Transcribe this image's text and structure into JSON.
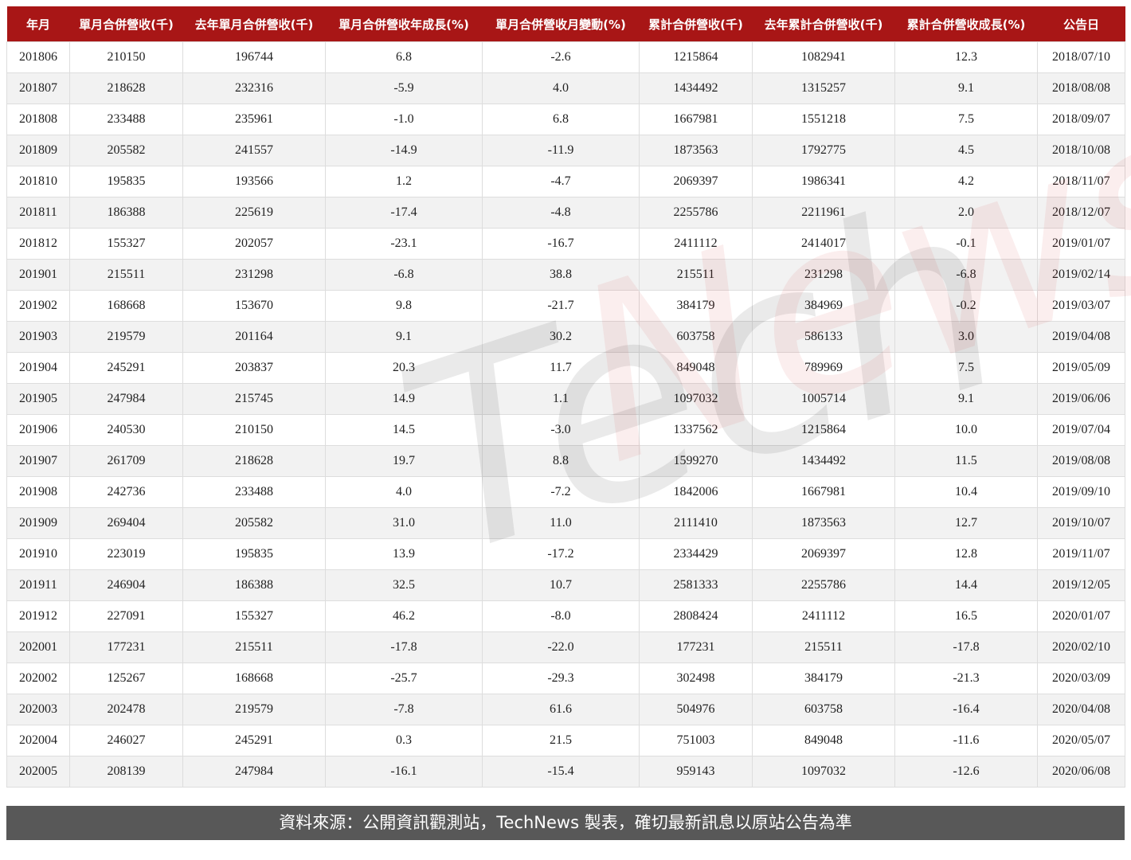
{
  "chart_data": {
    "type": "table",
    "columns": [
      "年月",
      "單月合併營收(千)",
      "去年單月合併營收(千)",
      "單月合併營收年成長(%)",
      "單月合併營收月變動(%)",
      "累計合併營收(千)",
      "去年累計合併營收(千)",
      "累計合併營收成長(%)",
      "公告日"
    ],
    "rows": [
      [
        "201806",
        "210150",
        "196744",
        "6.8",
        "-2.6",
        "1215864",
        "1082941",
        "12.3",
        "2018/07/10"
      ],
      [
        "201807",
        "218628",
        "232316",
        "-5.9",
        "4.0",
        "1434492",
        "1315257",
        "9.1",
        "2018/08/08"
      ],
      [
        "201808",
        "233488",
        "235961",
        "-1.0",
        "6.8",
        "1667981",
        "1551218",
        "7.5",
        "2018/09/07"
      ],
      [
        "201809",
        "205582",
        "241557",
        "-14.9",
        "-11.9",
        "1873563",
        "1792775",
        "4.5",
        "2018/10/08"
      ],
      [
        "201810",
        "195835",
        "193566",
        "1.2",
        "-4.7",
        "2069397",
        "1986341",
        "4.2",
        "2018/11/07"
      ],
      [
        "201811",
        "186388",
        "225619",
        "-17.4",
        "-4.8",
        "2255786",
        "2211961",
        "2.0",
        "2018/12/07"
      ],
      [
        "201812",
        "155327",
        "202057",
        "-23.1",
        "-16.7",
        "2411112",
        "2414017",
        "-0.1",
        "2019/01/07"
      ],
      [
        "201901",
        "215511",
        "231298",
        "-6.8",
        "38.8",
        "215511",
        "231298",
        "-6.8",
        "2019/02/14"
      ],
      [
        "201902",
        "168668",
        "153670",
        "9.8",
        "-21.7",
        "384179",
        "384969",
        "-0.2",
        "2019/03/07"
      ],
      [
        "201903",
        "219579",
        "201164",
        "9.1",
        "30.2",
        "603758",
        "586133",
        "3.0",
        "2019/04/08"
      ],
      [
        "201904",
        "245291",
        "203837",
        "20.3",
        "11.7",
        "849048",
        "789969",
        "7.5",
        "2019/05/09"
      ],
      [
        "201905",
        "247984",
        "215745",
        "14.9",
        "1.1",
        "1097032",
        "1005714",
        "9.1",
        "2019/06/06"
      ],
      [
        "201906",
        "240530",
        "210150",
        "14.5",
        "-3.0",
        "1337562",
        "1215864",
        "10.0",
        "2019/07/04"
      ],
      [
        "201907",
        "261709",
        "218628",
        "19.7",
        "8.8",
        "1599270",
        "1434492",
        "11.5",
        "2019/08/08"
      ],
      [
        "201908",
        "242736",
        "233488",
        "4.0",
        "-7.2",
        "1842006",
        "1667981",
        "10.4",
        "2019/09/10"
      ],
      [
        "201909",
        "269404",
        "205582",
        "31.0",
        "11.0",
        "2111410",
        "1873563",
        "12.7",
        "2019/10/07"
      ],
      [
        "201910",
        "223019",
        "195835",
        "13.9",
        "-17.2",
        "2334429",
        "2069397",
        "12.8",
        "2019/11/07"
      ],
      [
        "201911",
        "246904",
        "186388",
        "32.5",
        "10.7",
        "2581333",
        "2255786",
        "14.4",
        "2019/12/05"
      ],
      [
        "201912",
        "227091",
        "155327",
        "46.2",
        "-8.0",
        "2808424",
        "2411112",
        "16.5",
        "2020/01/07"
      ],
      [
        "202001",
        "177231",
        "215511",
        "-17.8",
        "-22.0",
        "177231",
        "215511",
        "-17.8",
        "2020/02/10"
      ],
      [
        "202002",
        "125267",
        "168668",
        "-25.7",
        "-29.3",
        "302498",
        "384179",
        "-21.3",
        "2020/03/09"
      ],
      [
        "202003",
        "202478",
        "219579",
        "-7.8",
        "61.6",
        "504976",
        "603758",
        "-16.4",
        "2020/04/08"
      ],
      [
        "202004",
        "246027",
        "245291",
        "0.3",
        "21.5",
        "751003",
        "849048",
        "-11.6",
        "2020/05/07"
      ],
      [
        "202005",
        "208139",
        "247984",
        "-16.1",
        "-15.4",
        "959143",
        "1097032",
        "-12.6",
        "2020/06/08"
      ]
    ]
  },
  "colors": {
    "header_bg": "#a81616",
    "footer_bg": "#585858",
    "stripe": "#f2f2f2"
  },
  "watermark": "TechNews",
  "footer": "資料來源：公開資訊觀測站，TechNews 製表，確切最新訊息以原站公告為準"
}
